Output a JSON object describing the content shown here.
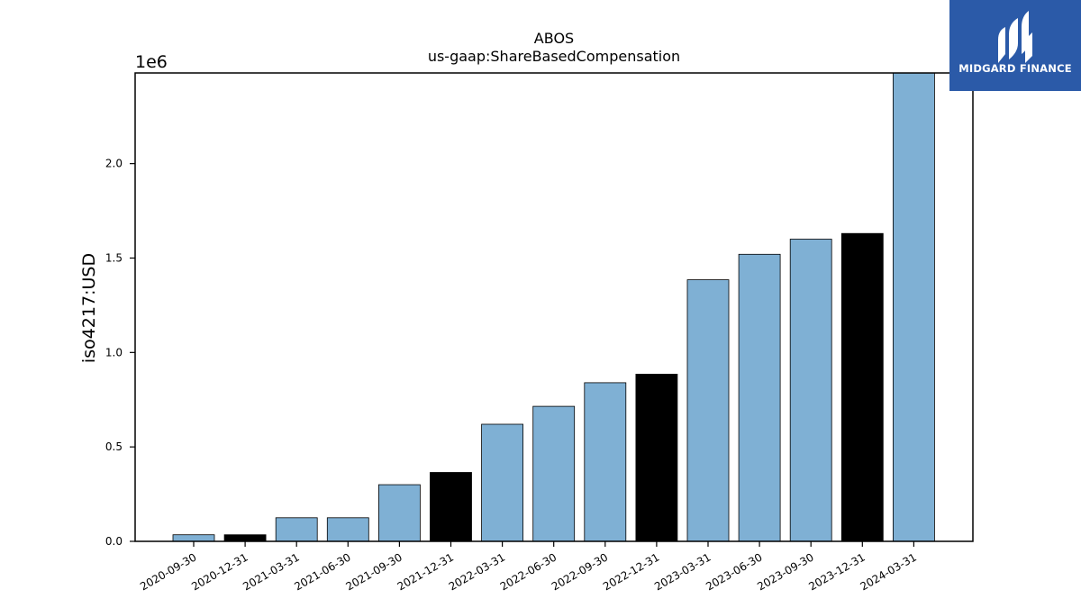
{
  "chart_data": {
    "type": "bar",
    "title": "ABOS",
    "subtitle": "us-gaap:ShareBasedCompensation",
    "ylabel": "iso4217:USD",
    "xlabel": "",
    "y_multiplier": "1e6",
    "ylim": [
      0,
      2480000
    ],
    "yticks": [
      0.0,
      0.5,
      1.0,
      1.5,
      2.0
    ],
    "ytick_labels": [
      "0.0",
      "0.5",
      "1.0",
      "1.5",
      "2.0"
    ],
    "grid": false,
    "categories": [
      "2020-09-30",
      "2020-12-31",
      "2021-03-31",
      "2021-06-30",
      "2021-09-30",
      "2021-12-31",
      "2022-03-31",
      "2022-06-30",
      "2022-09-30",
      "2022-12-31",
      "2023-03-31",
      "2023-06-30",
      "2023-09-30",
      "2023-12-31",
      "2024-03-31"
    ],
    "values": [
      35000,
      35000,
      125000,
      125000,
      300000,
      365000,
      620000,
      715000,
      840000,
      885000,
      1385000,
      1520000,
      1600000,
      1630000,
      2480000
    ],
    "bar_colors": [
      "#7fb0d4",
      "#000000",
      "#7fb0d4",
      "#7fb0d4",
      "#7fb0d4",
      "#000000",
      "#7fb0d4",
      "#7fb0d4",
      "#7fb0d4",
      "#000000",
      "#7fb0d4",
      "#7fb0d4",
      "#7fb0d4",
      "#000000",
      "#7fb0d4"
    ]
  },
  "logo": {
    "text": "MIDGARD FINANCE",
    "background": "#2b5aa8"
  }
}
